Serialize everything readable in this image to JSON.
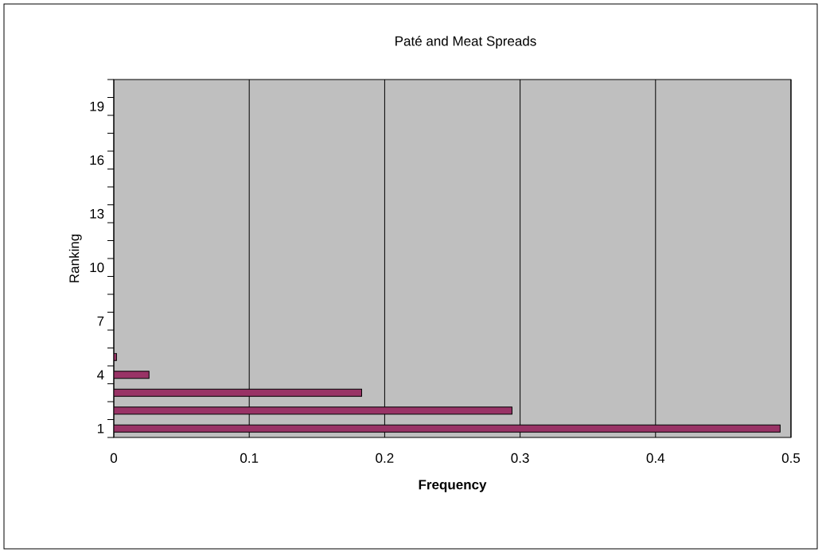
{
  "chart_data": {
    "type": "bar",
    "orientation": "horizontal",
    "title": "Paté and Meat Spreads",
    "xlabel": "Frequency",
    "ylabel": "Ranking",
    "categories": [
      null,
      "19",
      null,
      null,
      "16",
      null,
      null,
      "13",
      null,
      null,
      "10",
      null,
      null,
      "7",
      null,
      null,
      "4",
      null,
      null,
      "1"
    ],
    "values": [
      null,
      null,
      null,
      null,
      null,
      null,
      null,
      null,
      null,
      null,
      null,
      null,
      null,
      null,
      null,
      0.002,
      0.026,
      0.183,
      0.294,
      0.492
    ],
    "color": "#993366",
    "xlim": [
      0,
      0.5
    ],
    "xticks": [
      0,
      0.1,
      0.2,
      0.3,
      0.4,
      0.5
    ],
    "grid": "x"
  }
}
